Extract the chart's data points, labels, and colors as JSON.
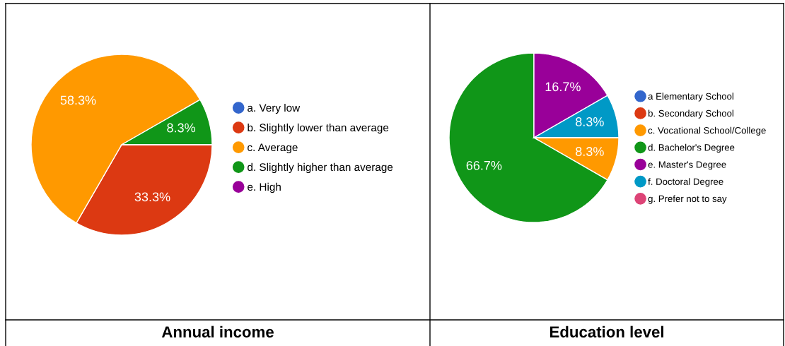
{
  "chart_data": [
    {
      "type": "pie",
      "title": "Annual income",
      "categories": [
        "a. Very low",
        "b. Slightly lower than average",
        "c. Average",
        "d. Slightly higher than average",
        "e. High"
      ],
      "values": [
        0,
        33.3,
        58.3,
        8.3,
        0
      ],
      "colors": [
        "#3366cc",
        "#dc3912",
        "#ff9900",
        "#109618",
        "#990099"
      ],
      "value_labels": [
        null,
        "33.3%",
        "58.3%",
        "8.3%",
        null
      ],
      "legend": "right"
    },
    {
      "type": "pie",
      "title": "Education level",
      "categories": [
        "a Elementary School",
        "b. Secondary School",
        "c. Vocational School/College",
        "d. Bachelor's Degree",
        "e. Master's Degree",
        "f. Doctoral Degree",
        "g. Prefer not to say"
      ],
      "values": [
        0,
        0,
        8.3,
        66.7,
        16.7,
        8.3,
        0
      ],
      "colors": [
        "#3366cc",
        "#dc3912",
        "#ff9900",
        "#109618",
        "#990099",
        "#0099c6",
        "#dd4477"
      ],
      "value_labels": [
        null,
        null,
        "8.3%",
        "66.7%",
        "16.7%",
        "8.3%",
        null
      ],
      "legend": "right"
    }
  ]
}
